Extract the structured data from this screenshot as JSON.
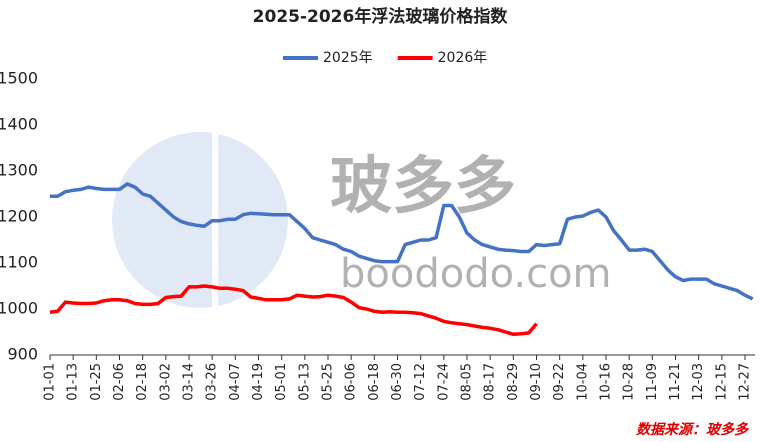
{
  "chart_data": {
    "type": "line",
    "title": "2025-2026年浮法玻璃价格指数",
    "watermark": [
      "玻多多",
      "boododo.com"
    ],
    "source": "数据来源：玻多多",
    "categories": [
      "01-01",
      null,
      null,
      "01-13",
      null,
      null,
      "01-25",
      null,
      null,
      "02-06",
      null,
      null,
      "02-18",
      null,
      null,
      "03-02",
      null,
      null,
      "03-14",
      null,
      null,
      "03-26",
      null,
      null,
      "04-07",
      null,
      null,
      "04-19",
      null,
      null,
      "05-01",
      null,
      null,
      "05-13",
      null,
      null,
      "05-25",
      null,
      null,
      "06-06",
      null,
      null,
      "06-18",
      null,
      null,
      "06-30",
      null,
      null,
      "07-12",
      null,
      null,
      "07-24",
      null,
      null,
      "08-05",
      null,
      null,
      "08-17",
      null,
      null,
      "08-29",
      null,
      null,
      "09-10",
      null,
      null,
      "09-22",
      null,
      null,
      "10-04",
      null,
      null,
      "10-16",
      null,
      null,
      "10-28",
      null,
      null,
      "11-09",
      null,
      null,
      "11-21",
      null,
      null,
      "12-03",
      null,
      null,
      "12-15",
      null,
      null,
      "12-27",
      null
    ],
    "series": [
      {
        "name": "2025年",
        "color": "#4472c4",
        "values": [
          1245,
          1245,
          1255,
          1258,
          1260,
          1265,
          1262,
          1260,
          1260,
          1260,
          1272,
          1265,
          1250,
          1245,
          1230,
          1215,
          1200,
          1190,
          1185,
          1182,
          1180,
          1192,
          1192,
          1195,
          1195,
          1205,
          1208,
          1207,
          1206,
          1205,
          1205,
          1205,
          1190,
          1175,
          1155,
          1150,
          1145,
          1140,
          1130,
          1125,
          1115,
          1110,
          1105,
          1103,
          1103,
          1103,
          1140,
          1145,
          1150,
          1150,
          1155,
          1225,
          1225,
          1200,
          1165,
          1150,
          1140,
          1135,
          1130,
          1128,
          1127,
          1125,
          1125,
          1140,
          1138,
          1140,
          1142,
          1195,
          1200,
          1202,
          1210,
          1215,
          1200,
          1170,
          1150,
          1128,
          1128,
          1130,
          1125,
          1105,
          1085,
          1070,
          1062,
          1065,
          1065,
          1065,
          1055,
          1050,
          1045,
          1040,
          1030,
          1022
        ]
      },
      {
        "name": "2026年",
        "color": "#ff0000",
        "values": [
          993,
          995,
          1015,
          1013,
          1012,
          1012,
          1013,
          1018,
          1020,
          1020,
          1018,
          1012,
          1010,
          1010,
          1012,
          1025,
          1027,
          1028,
          1048,
          1048,
          1050,
          1048,
          1045,
          1045,
          1043,
          1040,
          1026,
          1023,
          1020,
          1020,
          1020,
          1022,
          1030,
          1028,
          1026,
          1027,
          1030,
          1028,
          1025,
          1015,
          1003,
          1000,
          995,
          993,
          994,
          993,
          993,
          992,
          990,
          985,
          980,
          973,
          970,
          968,
          966,
          963,
          960,
          958,
          955,
          950,
          945,
          946,
          948,
          968,
          null,
          null,
          null,
          null,
          null,
          null,
          null,
          null,
          null,
          null,
          null,
          null,
          null,
          null,
          null,
          null,
          null,
          null,
          null,
          null,
          null,
          null,
          null,
          null,
          null,
          null,
          null,
          null
        ]
      }
    ],
    "ylim": [
      900,
      1500
    ],
    "yticks": [
      900,
      1000,
      1100,
      1200,
      1300,
      1400,
      1500
    ],
    "grid": false
  }
}
